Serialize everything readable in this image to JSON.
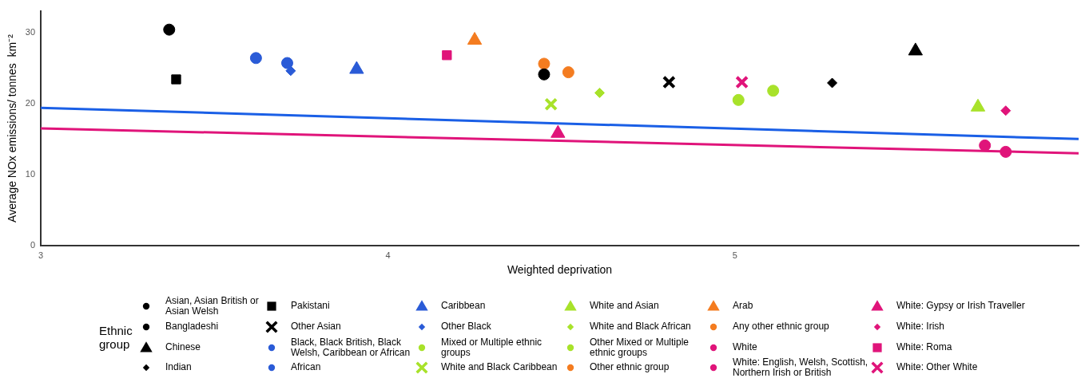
{
  "chart_data": {
    "type": "scatter",
    "xlabel": "Weighted deprivation",
    "ylabel": "Average NOx emissions/ tonnes  km⁻²",
    "legend_title": "Ethnic group",
    "legend": "bottom",
    "grid": false,
    "xlim": [
      3,
      5.99
    ],
    "xticks": [
      3,
      4,
      5
    ],
    "ylim": [
      0,
      33
    ],
    "yticks": [
      0,
      10,
      20,
      30
    ],
    "series": [
      {
        "name": "Asian, Asian British or Asian Welsh",
        "color": "#000000",
        "marker": "circle",
        "x": [
          4.45
        ],
        "values": [
          24.1
        ]
      },
      {
        "name": "Bangladeshi",
        "color": "#000000",
        "marker": "circle",
        "x": [
          3.37
        ],
        "values": [
          30.4
        ]
      },
      {
        "name": "Chinese",
        "color": "#000000",
        "marker": "triangle",
        "x": [
          5.52
        ],
        "values": [
          27.4
        ]
      },
      {
        "name": "Indian",
        "color": "#000000",
        "marker": "diamond",
        "x": [
          5.28
        ],
        "values": [
          22.9
        ]
      },
      {
        "name": "Pakistani",
        "color": "#000000",
        "marker": "square",
        "x": [
          3.39
        ],
        "values": [
          23.4
        ]
      },
      {
        "name": "Other Asian",
        "color": "#000000",
        "marker": "cross",
        "x": [
          4.81
        ],
        "values": [
          23.0
        ]
      },
      {
        "name": "Black, Black British, Black Welsh, Caribbean or African",
        "color": "#2a5bd7",
        "marker": "circle",
        "x": [
          3.71
        ],
        "values": [
          25.7
        ]
      },
      {
        "name": "African",
        "color": "#2a5bd7",
        "marker": "circle",
        "x": [
          3.62
        ],
        "values": [
          26.4
        ]
      },
      {
        "name": "Caribbean",
        "color": "#2a5bd7",
        "marker": "triangle",
        "x": [
          3.91
        ],
        "values": [
          24.8
        ]
      },
      {
        "name": "Other Black",
        "color": "#2a5bd7",
        "marker": "diamond",
        "x": [
          3.72
        ],
        "values": [
          24.6
        ]
      },
      {
        "name": "Mixed or Multiple ethnic groups",
        "color": "#a8e22a",
        "marker": "circle",
        "x": [
          5.01
        ],
        "values": [
          20.5
        ]
      },
      {
        "name": "White and Black Caribbean",
        "color": "#a8e22a",
        "marker": "cross",
        "x": [
          4.47
        ],
        "values": [
          19.9
        ]
      },
      {
        "name": "White and Asian",
        "color": "#a8e22a",
        "marker": "triangle",
        "x": [
          5.7
        ],
        "values": [
          19.5
        ]
      },
      {
        "name": "White and Black African",
        "color": "#a8e22a",
        "marker": "diamond",
        "x": [
          4.61
        ],
        "values": [
          21.5
        ]
      },
      {
        "name": "Other Mixed or Multiple ethnic groups",
        "color": "#a8e22a",
        "marker": "circle",
        "x": [
          5.11
        ],
        "values": [
          21.8
        ]
      },
      {
        "name": "Other ethnic group",
        "color": "#f47c20",
        "marker": "circle",
        "x": [
          4.45
        ],
        "values": [
          25.6
        ]
      },
      {
        "name": "Arab",
        "color": "#f47c20",
        "marker": "triangle",
        "x": [
          4.25
        ],
        "values": [
          28.9
        ]
      },
      {
        "name": "Any other ethnic group",
        "color": "#f47c20",
        "marker": "circle",
        "x": [
          4.52
        ],
        "values": [
          24.4
        ]
      },
      {
        "name": "White",
        "color": "#e0147a",
        "marker": "circle",
        "x": [
          5.72
        ],
        "values": [
          14.1
        ]
      },
      {
        "name": "White: English, Welsh, Scottish, Northern Irish or British",
        "color": "#e0147a",
        "marker": "circle",
        "x": [
          5.78
        ],
        "values": [
          13.2
        ]
      },
      {
        "name": "White: Gypsy or Irish Traveller",
        "color": "#e0147a",
        "marker": "triangle",
        "x": [
          4.49
        ],
        "values": [
          15.8
        ]
      },
      {
        "name": "White: Irish",
        "color": "#e0147a",
        "marker": "diamond",
        "x": [
          5.78
        ],
        "values": [
          19.0
        ]
      },
      {
        "name": "White: Roma",
        "color": "#e0147a",
        "marker": "square",
        "x": [
          4.17
        ],
        "values": [
          26.8
        ]
      },
      {
        "name": "White: Other White",
        "color": "#e0147a",
        "marker": "cross",
        "x": [
          5.02
        ],
        "values": [
          23.0
        ]
      },
      {
        "type": "line",
        "color": "#1a5fe6",
        "marker": "none",
        "x": [
          3,
          5.99
        ],
        "values": [
          19.4,
          15.0
        ]
      },
      {
        "type": "line",
        "color": "#e0147a",
        "marker": "none",
        "x": [
          3,
          5.99
        ],
        "values": [
          16.5,
          13.0
        ]
      }
    ]
  }
}
